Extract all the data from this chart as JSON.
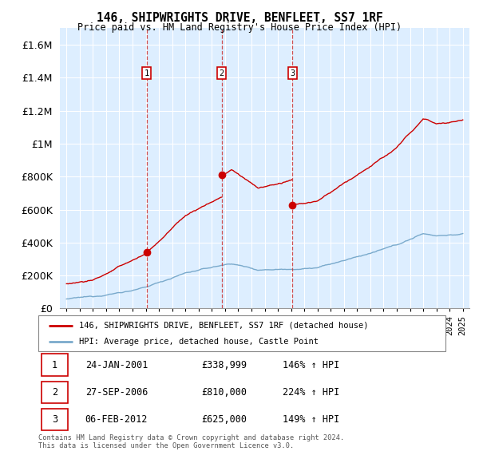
{
  "title": "146, SHIPWRIGHTS DRIVE, BENFLEET, SS7 1RF",
  "subtitle": "Price paid vs. HM Land Registry's House Price Index (HPI)",
  "legend_line1": "146, SHIPWRIGHTS DRIVE, BENFLEET, SS7 1RF (detached house)",
  "legend_line2": "HPI: Average price, detached house, Castle Point",
  "sale1_label": "1",
  "sale1_date": "24-JAN-2001",
  "sale1_price": "£338,999",
  "sale1_hpi": "146% ↑ HPI",
  "sale1_year": 2001.07,
  "sale1_value": 338999,
  "sale2_label": "2",
  "sale2_date": "27-SEP-2006",
  "sale2_price": "£810,000",
  "sale2_hpi": "224% ↑ HPI",
  "sale2_year": 2006.74,
  "sale2_value": 810000,
  "sale3_label": "3",
  "sale3_date": "06-FEB-2012",
  "sale3_price": "£625,000",
  "sale3_hpi": "149% ↑ HPI",
  "sale3_year": 2012.1,
  "sale3_value": 625000,
  "red_color": "#cc0000",
  "blue_color": "#7aaacc",
  "dashed_color": "#cc3333",
  "marker_box_color": "#cc0000",
  "background_color": "#ffffff",
  "plot_bg_color": "#ddeeff",
  "grid_color": "#ffffff",
  "footer_text": "Contains HM Land Registry data © Crown copyright and database right 2024.\nThis data is licensed under the Open Government Licence v3.0.",
  "ylim_max": 1700000,
  "xlabel_fontsize": 7.5,
  "ylabel_fontsize": 9
}
